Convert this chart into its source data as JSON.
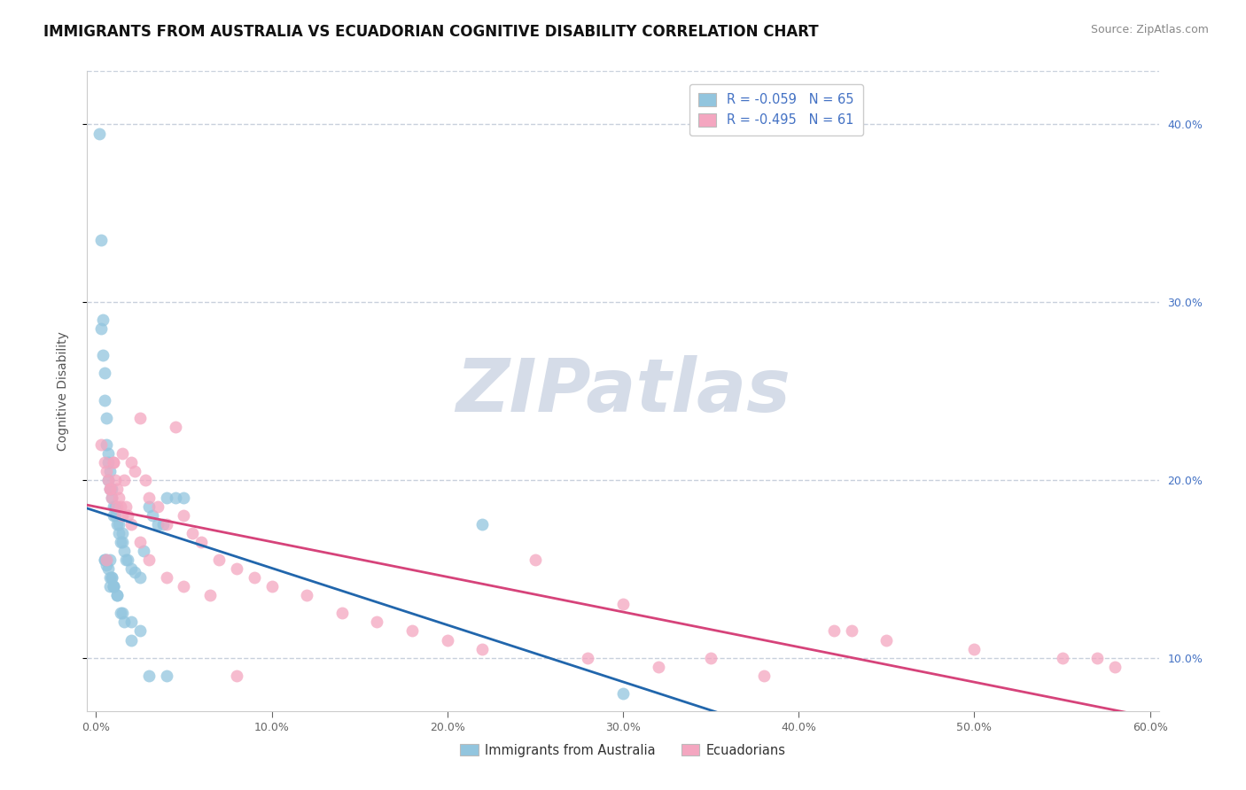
{
  "title": "IMMIGRANTS FROM AUSTRALIA VS ECUADORIAN COGNITIVE DISABILITY CORRELATION CHART",
  "source": "Source: ZipAtlas.com",
  "ylabel": "Cognitive Disability",
  "xlim": [
    -0.005,
    0.605
  ],
  "ylim": [
    0.07,
    0.43
  ],
  "xticks": [
    0.0,
    0.1,
    0.2,
    0.3,
    0.4,
    0.5,
    0.6
  ],
  "xtick_labels": [
    "0.0%",
    "10.0%",
    "20.0%",
    "30.0%",
    "40.0%",
    "50.0%",
    "60.0%"
  ],
  "yticks_right": [
    0.1,
    0.2,
    0.3,
    0.4
  ],
  "ytick_labels_right": [
    "10.0%",
    "20.0%",
    "30.0%",
    "40.0%"
  ],
  "R_blue": -0.059,
  "N_blue": 65,
  "R_pink": -0.495,
  "N_pink": 61,
  "blue_color": "#92c5de",
  "pink_color": "#f4a6c0",
  "blue_line_color": "#2166ac",
  "pink_line_color": "#d6437a",
  "watermark": "ZIPatlas",
  "watermark_color": "#d5dce8",
  "background_color": "#ffffff",
  "grid_color": "#c8d0dc",
  "title_fontsize": 12,
  "axis_label_fontsize": 10,
  "tick_fontsize": 9,
  "legend_fontsize": 10.5,
  "source_fontsize": 9,
  "legend_text_color": "#4472c4",
  "right_tick_color": "#4472c4",
  "blue_x": [
    0.002,
    0.003,
    0.003,
    0.004,
    0.004,
    0.005,
    0.005,
    0.006,
    0.006,
    0.007,
    0.007,
    0.007,
    0.008,
    0.008,
    0.009,
    0.009,
    0.01,
    0.01,
    0.011,
    0.011,
    0.012,
    0.013,
    0.013,
    0.014,
    0.015,
    0.015,
    0.016,
    0.017,
    0.018,
    0.02,
    0.022,
    0.025,
    0.027,
    0.03,
    0.032,
    0.035,
    0.038,
    0.04,
    0.045,
    0.05,
    0.006,
    0.008,
    0.009,
    0.01,
    0.012,
    0.015,
    0.02,
    0.025,
    0.03,
    0.04,
    0.005,
    0.006,
    0.007,
    0.008,
    0.009,
    0.01,
    0.012,
    0.014,
    0.016,
    0.02,
    0.22,
    0.3,
    0.005,
    0.008,
    0.01
  ],
  "blue_y": [
    0.395,
    0.335,
    0.285,
    0.29,
    0.27,
    0.26,
    0.245,
    0.235,
    0.22,
    0.215,
    0.21,
    0.2,
    0.205,
    0.195,
    0.195,
    0.19,
    0.185,
    0.18,
    0.185,
    0.18,
    0.175,
    0.175,
    0.17,
    0.165,
    0.17,
    0.165,
    0.16,
    0.155,
    0.155,
    0.15,
    0.148,
    0.145,
    0.16,
    0.185,
    0.18,
    0.175,
    0.175,
    0.19,
    0.19,
    0.19,
    0.155,
    0.145,
    0.145,
    0.14,
    0.135,
    0.125,
    0.12,
    0.115,
    0.09,
    0.09,
    0.155,
    0.152,
    0.15,
    0.14,
    0.145,
    0.14,
    0.135,
    0.125,
    0.12,
    0.11,
    0.175,
    0.08,
    0.155,
    0.155,
    0.14
  ],
  "pink_x": [
    0.003,
    0.005,
    0.006,
    0.007,
    0.008,
    0.009,
    0.01,
    0.011,
    0.012,
    0.013,
    0.014,
    0.015,
    0.016,
    0.017,
    0.018,
    0.02,
    0.022,
    0.025,
    0.028,
    0.03,
    0.035,
    0.04,
    0.045,
    0.05,
    0.055,
    0.06,
    0.07,
    0.08,
    0.09,
    0.1,
    0.12,
    0.14,
    0.16,
    0.18,
    0.2,
    0.22,
    0.25,
    0.28,
    0.3,
    0.32,
    0.35,
    0.38,
    0.42,
    0.45,
    0.5,
    0.55,
    0.58,
    0.006,
    0.008,
    0.01,
    0.012,
    0.015,
    0.02,
    0.025,
    0.03,
    0.04,
    0.05,
    0.065,
    0.08,
    0.57,
    0.43
  ],
  "pink_y": [
    0.22,
    0.21,
    0.205,
    0.2,
    0.195,
    0.19,
    0.21,
    0.2,
    0.195,
    0.19,
    0.185,
    0.215,
    0.2,
    0.185,
    0.18,
    0.21,
    0.205,
    0.235,
    0.2,
    0.19,
    0.185,
    0.175,
    0.23,
    0.18,
    0.17,
    0.165,
    0.155,
    0.15,
    0.145,
    0.14,
    0.135,
    0.125,
    0.12,
    0.115,
    0.11,
    0.105,
    0.155,
    0.1,
    0.13,
    0.095,
    0.1,
    0.09,
    0.115,
    0.11,
    0.105,
    0.1,
    0.095,
    0.155,
    0.195,
    0.21,
    0.185,
    0.18,
    0.175,
    0.165,
    0.155,
    0.145,
    0.14,
    0.135,
    0.09,
    0.1,
    0.115
  ]
}
